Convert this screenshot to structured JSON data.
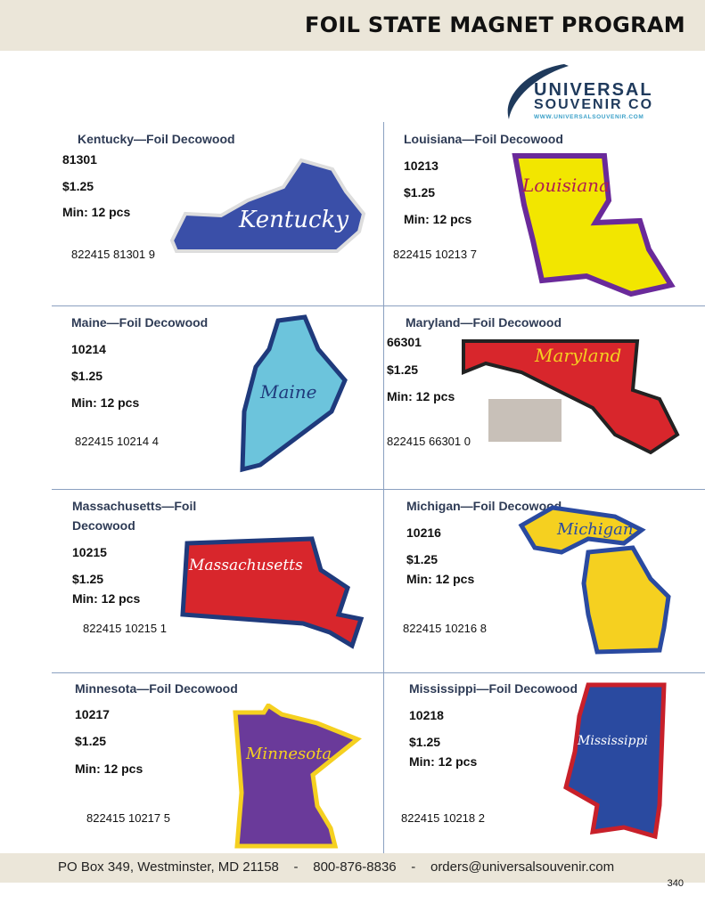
{
  "header": {
    "title": "FOIL STATE MAGNET PROGRAM"
  },
  "logo": {
    "line1": "UNIVERSAL",
    "line2": "SOUVENIR CO",
    "url": "WWW.UNIVERSALSOUVENIR.COM"
  },
  "products": [
    {
      "title": "Kentucky—Foil Decowood",
      "sku": "81301",
      "price": "$1.25",
      "min": "Min: 12 pcs",
      "upc": "822415 81301 9",
      "map_label": "Kentucky",
      "color": "#3a4fa8"
    },
    {
      "title": "Louisiana—Foil  Decowood",
      "sku": "10213",
      "price": "$1.25",
      "min": "Min: 12 pcs",
      "upc": "822415 10213 7",
      "map_label": "Louisiana",
      "color": "#f2e600"
    },
    {
      "title": "Maine—Foil   Decowood",
      "sku": "10214",
      "price": "$1.25",
      "min": "Min: 12 pcs",
      "upc": "822415 10214 4",
      "map_label": "Maine",
      "color": "#6cc4dc"
    },
    {
      "title": "Maryland—Foil Decowood",
      "sku": "66301",
      "price": "$1.25",
      "min": "Min: 12 pcs",
      "upc": "822415 66301 0",
      "map_label": "Maryland",
      "color": "#d8262c"
    },
    {
      "title": "Massachusetts—Foil",
      "title2": "Decowood",
      "sku": "10215",
      "price": "$1.25",
      "min": "Min: 12 pcs",
      "upc": "822415 10215 1",
      "map_label": "Massachusetts",
      "color": "#d8262c"
    },
    {
      "title": "Michigan—Foil Decowood",
      "sku": "10216",
      "price": "$1.25",
      "min": "Min: 12 pcs",
      "upc": "822415 10216 8",
      "map_label": "Michigan",
      "color": "#f5d020"
    },
    {
      "title": "Minnesota—Foil   Decowood",
      "sku": "10217",
      "price": "$1.25",
      "min": "Min: 12 pcs",
      "upc": "822415 10217 5",
      "map_label": "Minnesota",
      "color": "#6a3a9a"
    },
    {
      "title": "Mississippi—Foil Decowood",
      "sku": "10218",
      "price": "$1.25",
      "min": "Min: 12 pcs",
      "upc": "822415 10218 2",
      "map_label": "Mississippi",
      "color": "#2a4aa0"
    }
  ],
  "footer": {
    "text": "PO Box 349, Westminster, MD 21158    -    800-876-8836    -    orders@universalsouvenir.com",
    "page": "340"
  }
}
